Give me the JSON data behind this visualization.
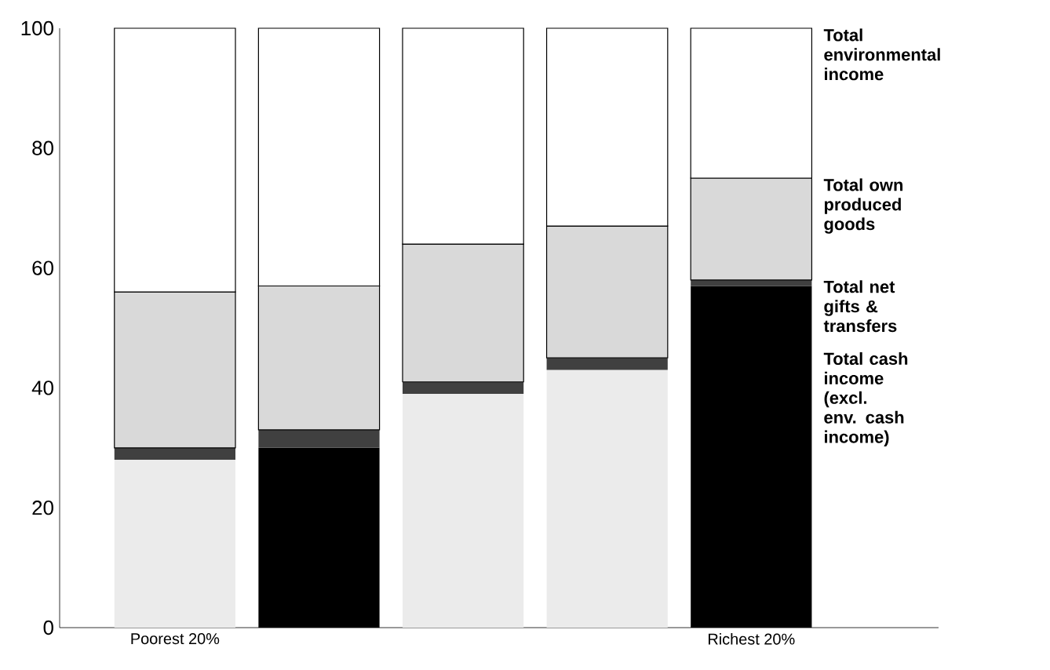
{
  "chart_data": {
    "type": "bar",
    "stacked": true,
    "categories": [
      "Poorest 20%",
      null,
      null,
      null,
      "Richest 20%"
    ],
    "series": [
      {
        "name": "Total cash income (excl. env. cash income)",
        "colors": [
          "#ebebeb",
          "#000000",
          "#ebebeb",
          "#ebebeb",
          "#000000"
        ],
        "values": [
          28,
          30,
          39,
          43,
          57
        ]
      },
      {
        "name": "Total net gifts & transfers",
        "color": "#404040",
        "values": [
          2,
          3,
          2,
          2,
          1
        ]
      },
      {
        "name": "Total own produced goods",
        "color": "#d9d9d9",
        "values": [
          26,
          24,
          23,
          22,
          17
        ]
      },
      {
        "name": "Total environmental income",
        "color": "#ffffff",
        "values": [
          44,
          43,
          36,
          33,
          25
        ]
      }
    ],
    "ylim": [
      0,
      100
    ],
    "yticks": [
      0,
      20,
      40,
      60,
      80,
      100
    ],
    "grid": false,
    "legend": "right"
  }
}
